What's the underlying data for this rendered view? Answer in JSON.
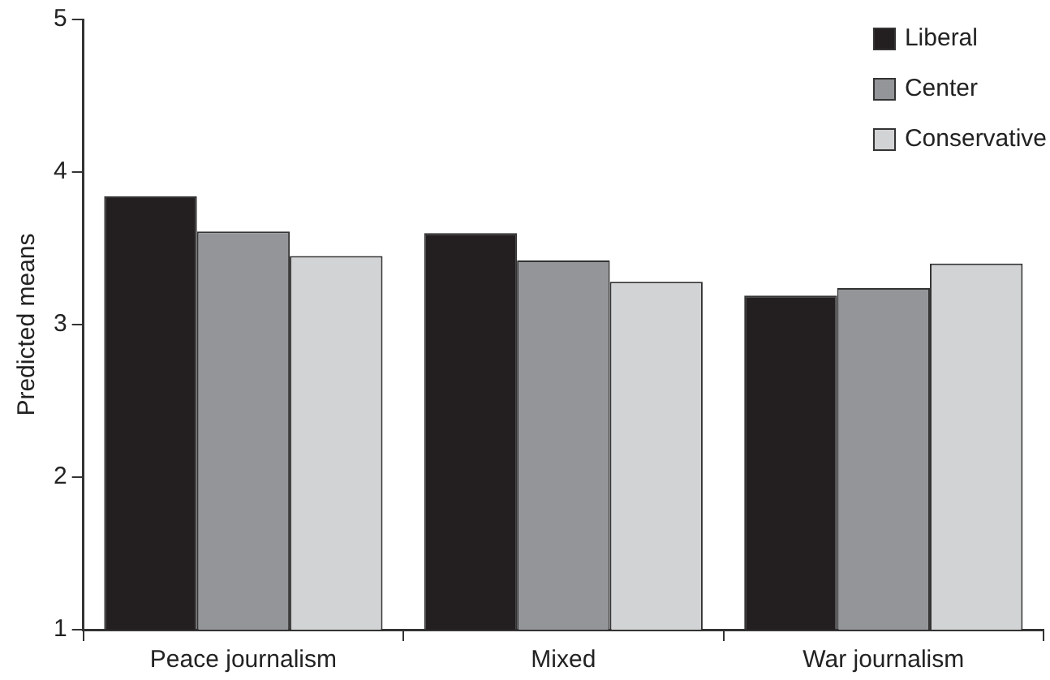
{
  "chart_data": {
    "type": "bar",
    "ylabel": "Predicted means",
    "categories": [
      "Peace journalism",
      "Mixed",
      "War journalism"
    ],
    "series": [
      {
        "name": "Liberal",
        "color": "#231f20",
        "values": [
          3.84,
          3.6,
          3.19
        ]
      },
      {
        "name": "Center",
        "color": "#939598",
        "values": [
          3.61,
          3.42,
          3.24
        ]
      },
      {
        "name": "Conservative",
        "color": "#d1d3d4",
        "values": [
          3.45,
          3.28,
          3.4
        ]
      }
    ],
    "ylim": [
      1,
      5
    ],
    "yticks": [
      1,
      2,
      3,
      4,
      5
    ],
    "grid": false,
    "legend": "top right"
  }
}
